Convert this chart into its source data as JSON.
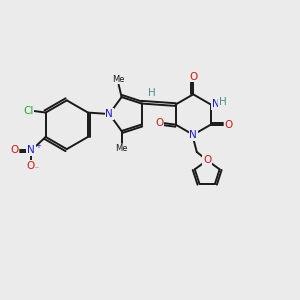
{
  "background_color": "#ebebeb",
  "bond_color": "#1a1a1a",
  "atom_colors": {
    "N": "#1a1acc",
    "O": "#cc1a1a",
    "H": "#4a8f8f",
    "Cl": "#22aa22"
  },
  "figsize": [
    3.0,
    3.0
  ],
  "dpi": 100,
  "lw": 1.4,
  "fontsize": 7.5
}
